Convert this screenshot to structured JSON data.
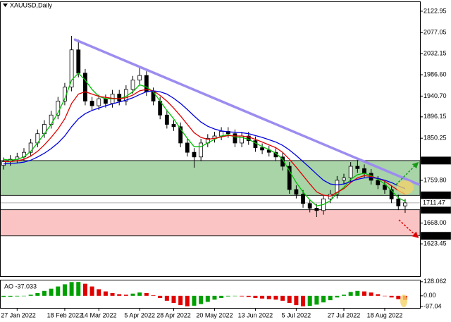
{
  "chart_data": [
    {
      "type": "candlestick",
      "title": "XAUUSD,Daily",
      "categories": [
        null,
        null,
        "27 Jan 2022",
        null,
        null,
        null,
        null,
        null,
        null,
        "18 Feb 2022",
        null,
        null,
        null,
        null,
        "14 Mar 2022",
        null,
        null,
        null,
        null,
        null,
        "5 Apr 2022",
        null,
        null,
        null,
        null,
        "28 Apr 2022",
        null,
        null,
        null,
        null,
        null,
        "20 May 2022",
        null,
        null,
        null,
        null,
        null,
        "13 Jun 2022",
        null,
        null,
        null,
        null,
        null,
        "5 Jul 2022",
        null,
        null,
        null,
        null,
        null,
        null,
        "27 Jul 2022",
        null,
        null,
        null,
        null,
        null,
        "18 Aug 2022",
        null,
        null,
        null
      ],
      "open": [
        1792,
        1800,
        1805,
        1810,
        1820,
        1840,
        1860,
        1880,
        1900,
        1930,
        1960,
        2040,
        1990,
        1930,
        1920,
        1935,
        1925,
        1945,
        1930,
        1955,
        1975,
        1985,
        1950,
        1930,
        1900,
        1880,
        1875,
        1840,
        1820,
        1810,
        1840,
        1850,
        1855,
        1865,
        1860,
        1840,
        1855,
        1845,
        1830,
        1825,
        1820,
        1810,
        1790,
        1740,
        1730,
        1710,
        1700,
        1695,
        1720,
        1730,
        1760,
        1765,
        1790,
        1785,
        1775,
        1760,
        1750,
        1740,
        1720,
        1705
      ],
      "high": [
        1809,
        1814,
        1819,
        1829,
        1849,
        1869,
        1889,
        1909,
        1939,
        1969,
        2070,
        2062,
        1999,
        1939,
        1944,
        1944,
        1954,
        1954,
        1964,
        1984,
        2002,
        1994,
        1959,
        1939,
        1909,
        1889,
        1884,
        1849,
        1829,
        1849,
        1859,
        1864,
        1874,
        1874,
        1869,
        1864,
        1864,
        1854,
        1839,
        1834,
        1829,
        1819,
        1799,
        1749,
        1739,
        1719,
        1709,
        1729,
        1739,
        1769,
        1774,
        1799,
        1807,
        1794,
        1784,
        1769,
        1759,
        1749,
        1729,
        1720
      ],
      "low": [
        1783,
        1791,
        1796,
        1801,
        1811,
        1831,
        1851,
        1871,
        1891,
        1921,
        1951,
        1981,
        1921,
        1911,
        1911,
        1916,
        1916,
        1921,
        1921,
        1946,
        1966,
        1941,
        1921,
        1891,
        1871,
        1866,
        1831,
        1811,
        1787,
        1801,
        1831,
        1841,
        1846,
        1851,
        1831,
        1831,
        1836,
        1821,
        1816,
        1811,
        1801,
        1781,
        1731,
        1721,
        1701,
        1691,
        1681,
        1686,
        1711,
        1721,
        1751,
        1756,
        1776,
        1766,
        1751,
        1741,
        1731,
        1711,
        1696,
        1690
      ],
      "close": [
        1800,
        1805,
        1810,
        1820,
        1840,
        1860,
        1880,
        1900,
        1930,
        1960,
        2040,
        1990,
        1930,
        1920,
        1935,
        1925,
        1945,
        1930,
        1955,
        1975,
        1985,
        1950,
        1930,
        1900,
        1880,
        1875,
        1840,
        1820,
        1810,
        1840,
        1850,
        1855,
        1865,
        1860,
        1840,
        1855,
        1845,
        1830,
        1825,
        1820,
        1810,
        1790,
        1740,
        1730,
        1710,
        1700,
        1695,
        1720,
        1730,
        1760,
        1765,
        1790,
        1785,
        1775,
        1760,
        1750,
        1740,
        1720,
        1705,
        1711.47
      ],
      "up_color": "#ffffff",
      "down_color": "#000000",
      "series": [
        {
          "color": "#00c000",
          "values": [
            1805,
            1803,
            1805,
            1810,
            1822,
            1840,
            1860,
            1880,
            1905,
            1935,
            1975,
            1990,
            1975,
            1955,
            1940,
            1935,
            1935,
            1935,
            1940,
            1950,
            1965,
            1960,
            1950,
            1930,
            1910,
            1892,
            1870,
            1850,
            1832,
            1832,
            1840,
            1848,
            1855,
            1858,
            1853,
            1852,
            1848,
            1840,
            1832,
            1826,
            1818,
            1805,
            1780,
            1755,
            1735,
            1718,
            1705,
            1708,
            1716,
            1732,
            1745,
            1762,
            1772,
            1775,
            1770,
            1762,
            1752,
            1738,
            1722,
            1715
          ]
        },
        {
          "color": "#e00000",
          "values": [
            1800,
            1800,
            1802,
            1805,
            1812,
            1822,
            1836,
            1852,
            1870,
            1892,
            1925,
            1945,
            1950,
            1945,
            1940,
            1938,
            1936,
            1935,
            1937,
            1943,
            1952,
            1955,
            1952,
            1942,
            1930,
            1915,
            1898,
            1880,
            1862,
            1852,
            1848,
            1850,
            1853,
            1856,
            1855,
            1855,
            1853,
            1848,
            1842,
            1836,
            1830,
            1820,
            1805,
            1788,
            1770,
            1752,
            1735,
            1728,
            1726,
            1734,
            1742,
            1755,
            1765,
            1770,
            1768,
            1764,
            1758,
            1748,
            1738,
            1730
          ]
        },
        {
          "color": "#0000e0",
          "values": [
            1795,
            1796,
            1797,
            1799,
            1803,
            1810,
            1818,
            1828,
            1840,
            1855,
            1875,
            1892,
            1903,
            1910,
            1915,
            1920,
            1924,
            1928,
            1932,
            1937,
            1944,
            1950,
            1952,
            1950,
            1945,
            1936,
            1925,
            1912,
            1898,
            1885,
            1876,
            1870,
            1866,
            1864,
            1863,
            1862,
            1860,
            1856,
            1852,
            1847,
            1842,
            1835,
            1825,
            1813,
            1800,
            1787,
            1773,
            1760,
            1752,
            1750,
            1752,
            1757,
            1762,
            1765,
            1766,
            1764,
            1760,
            1755,
            1748,
            1742
          ]
        }
      ],
      "zones": [
        {
          "low": 1727.43,
          "high": 1802.29,
          "color": "#a8d4a8"
        },
        {
          "low": 1640.67,
          "high": 1696.81,
          "color": "#fbc4c4"
        }
      ],
      "last_price": 1711.47,
      "trend_line": {
        "x": [
          10.5,
          61
        ],
        "y": [
          2062,
          1751
        ],
        "color": "#9d8cf0"
      },
      "ylim": [
        1554,
        2144
      ],
      "yticks": [
        2122.95,
        2077.05,
        2032.15,
        {
          "value": 1986.6,
          "label": "1986.60"
        },
        {
          "value": 1940.7,
          "label": "1940.70"
        },
        1896.15,
        1850.25,
        {
          "value": 1759.8,
          "label": "1759.80"
        },
        {
          "value": 1668,
          "label": "1668.00"
        },
        1623.45
      ],
      "grid": false
    },
    {
      "type": "bar",
      "title": "AO -37.033",
      "values": [
        -10,
        -8,
        -5,
        0,
        10,
        25,
        45,
        65,
        85,
        105,
        125,
        126,
        110,
        85,
        60,
        40,
        25,
        15,
        10,
        20,
        30,
        25,
        5,
        -20,
        -45,
        -65,
        -85,
        -95,
        -90,
        -75,
        -55,
        -35,
        -20,
        -5,
        0,
        -5,
        -10,
        -20,
        -25,
        -30,
        -35,
        -45,
        -65,
        -85,
        -95,
        -92,
        -80,
        -60,
        -40,
        -15,
        10,
        35,
        45,
        40,
        30,
        15,
        0,
        -15,
        -30,
        -37.033
      ],
      "up_color": "#00a000",
      "down_color": "#e00000",
      "ylim": [
        -110,
        140
      ],
      "yticks": [
        128.062,
        {
          "value": 0,
          "label": "0.00"
        },
        -97.04
      ],
      "grid": false
    }
  ]
}
